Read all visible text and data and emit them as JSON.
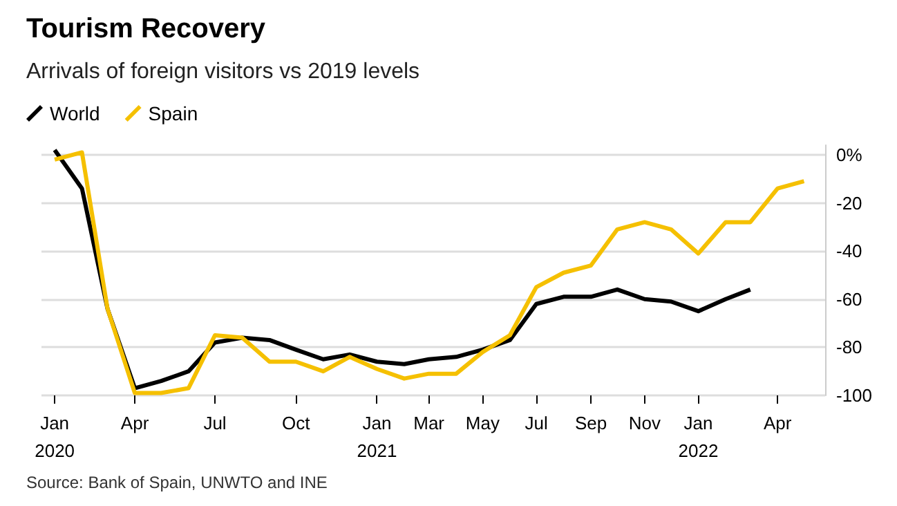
{
  "chart_data": {
    "type": "line",
    "title": "Tourism Recovery",
    "subtitle": "Arrivals of foreign visitors vs 2019 levels",
    "x": [
      "2020-01",
      "2020-02",
      "2020-03",
      "2020-04",
      "2020-05",
      "2020-06",
      "2020-07",
      "2020-08",
      "2020-09",
      "2020-10",
      "2020-11",
      "2020-12",
      "2021-01",
      "2021-02",
      "2021-03",
      "2021-04",
      "2021-05",
      "2021-06",
      "2021-07",
      "2021-08",
      "2021-09",
      "2021-10",
      "2021-11",
      "2021-12",
      "2022-01",
      "2022-02",
      "2022-03",
      "2022-04",
      "2022-05"
    ],
    "series": [
      {
        "name": "World",
        "color": "#000000",
        "values": [
          2,
          -14,
          -64,
          -97,
          -94,
          -90,
          -78,
          -76,
          -77,
          -81,
          -85,
          -83,
          -86,
          -87,
          -85,
          -84,
          -81,
          -77,
          -62,
          -59,
          -59,
          -56,
          -60,
          -61,
          -65,
          -60,
          -56,
          null,
          null
        ]
      },
      {
        "name": "Spain",
        "color": "#f5c000",
        "values": [
          -2,
          1,
          -64,
          -99,
          -99,
          -97,
          -75,
          -76,
          -86,
          -86,
          -90,
          -84,
          -89,
          -93,
          -91,
          -91,
          -82,
          -75,
          -55,
          -49,
          -46,
          -31,
          -28,
          -31,
          -41,
          -28,
          -28,
          -14,
          -11
        ]
      }
    ],
    "xlim": [
      "2019-12-17",
      "2022-05-25"
    ],
    "xticks": [
      {
        "value": "2020-01",
        "label": "Jan\n2020"
      },
      {
        "value": "2020-04",
        "label": "Apr"
      },
      {
        "value": "2020-07",
        "label": "Jul"
      },
      {
        "value": "2020-10",
        "label": "Oct"
      },
      {
        "value": "2021-01",
        "label": "Jan\n2021"
      },
      {
        "value": "2021-03",
        "label": "Mar"
      },
      {
        "value": "2021-05",
        "label": "May"
      },
      {
        "value": "2021-07",
        "label": "Jul"
      },
      {
        "value": "2021-09",
        "label": "Sep"
      },
      {
        "value": "2021-11",
        "label": "Nov"
      },
      {
        "value": "2022-01",
        "label": "Jan\n2022"
      },
      {
        "value": "2022-04",
        "label": "Apr"
      }
    ],
    "ylim": [
      -100,
      4
    ],
    "yticks": [
      {
        "value": 0,
        "label": "0%"
      },
      -20,
      -40,
      -60,
      -80,
      -100
    ],
    "grid": "y",
    "legend": "top left",
    "marker": "none",
    "line_style": "solid",
    "annotations": [
      "Source: Bank of Spain, UNWTO and INE"
    ]
  }
}
